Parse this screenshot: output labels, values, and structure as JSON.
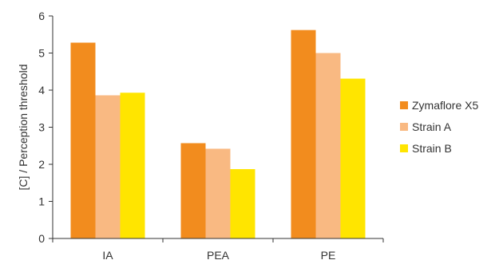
{
  "chart_data": {
    "type": "bar",
    "categories": [
      "IA",
      "PEA",
      "PE"
    ],
    "series": [
      {
        "name": "Zymaflore X5",
        "values": [
          5.28,
          2.57,
          5.62
        ],
        "color": "#f28c1e"
      },
      {
        "name": "Strain A",
        "values": [
          3.86,
          2.42,
          5.0
        ],
        "color": "#f9b982"
      },
      {
        "name": "Strain B",
        "values": [
          3.93,
          1.87,
          4.31
        ],
        "color": "#ffe500"
      }
    ],
    "title": "",
    "xlabel": "",
    "ylabel": "[C] / Perception threshold",
    "ylim": [
      0,
      6
    ],
    "yticks": [
      "0",
      "1",
      "2",
      "3",
      "4",
      "5",
      "6"
    ],
    "grid": false,
    "legend_position": "right"
  }
}
